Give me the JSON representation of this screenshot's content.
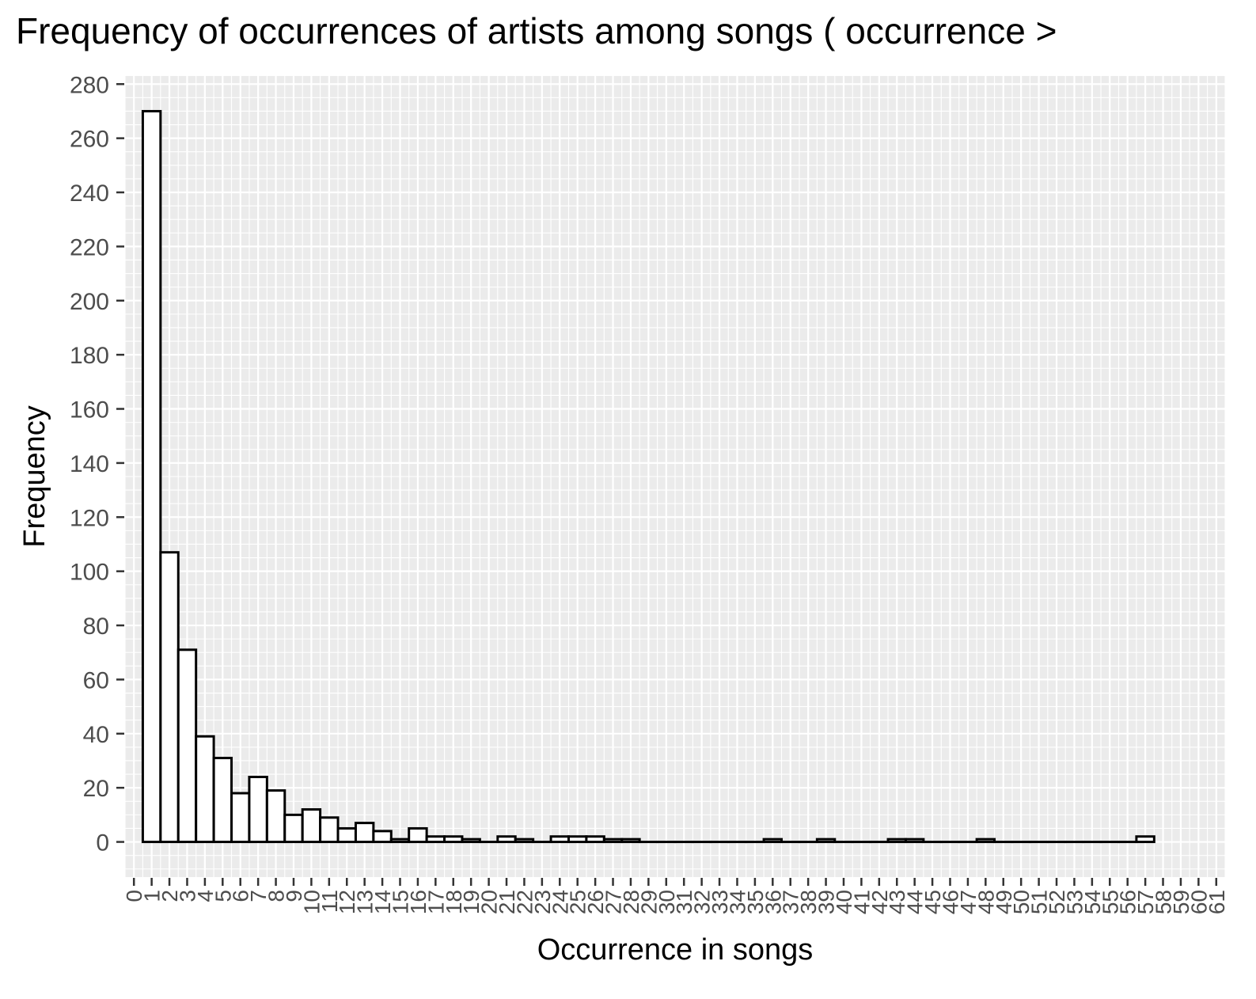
{
  "chart_data": {
    "type": "bar",
    "title": "Frequency of occurrences of artists among songs ( occurrence >",
    "xlabel": "Occurrence in songs",
    "ylabel": "Frequency",
    "x_ticks": [
      "0",
      "1",
      "2",
      "3",
      "4",
      "5",
      "6",
      "7",
      "8",
      "9",
      "10",
      "11",
      "12",
      "13",
      "14",
      "15",
      "16",
      "17",
      "18",
      "19",
      "20",
      "21",
      "22",
      "23",
      "24",
      "25",
      "26",
      "27",
      "28",
      "29",
      "30",
      "31",
      "32",
      "33",
      "34",
      "35",
      "36",
      "37",
      "38",
      "39",
      "40",
      "41",
      "42",
      "43",
      "44",
      "45",
      "46",
      "47",
      "48",
      "49",
      "50",
      "51",
      "52",
      "53",
      "54",
      "55",
      "56",
      "57",
      "58",
      "59",
      "60",
      "61"
    ],
    "y_ticks": [
      "0",
      "20",
      "40",
      "60",
      "80",
      "100",
      "120",
      "140",
      "160",
      "180",
      "200",
      "220",
      "240",
      "260",
      "280"
    ],
    "xlim": [
      -0.5,
      61.5
    ],
    "ylim": [
      -13,
      283
    ],
    "grid": true,
    "bar_fill": "#ffffff",
    "bar_stroke": "#000000",
    "panel_background": "#ebebeb",
    "gridline_color": "#ffffff",
    "bins": [
      {
        "x": 1,
        "value": 270
      },
      {
        "x": 2,
        "value": 107
      },
      {
        "x": 3,
        "value": 71
      },
      {
        "x": 4,
        "value": 39
      },
      {
        "x": 5,
        "value": 31
      },
      {
        "x": 6,
        "value": 18
      },
      {
        "x": 7,
        "value": 24
      },
      {
        "x": 8,
        "value": 19
      },
      {
        "x": 9,
        "value": 10
      },
      {
        "x": 10,
        "value": 12
      },
      {
        "x": 11,
        "value": 9
      },
      {
        "x": 12,
        "value": 5
      },
      {
        "x": 13,
        "value": 7
      },
      {
        "x": 14,
        "value": 4
      },
      {
        "x": 15,
        "value": 1
      },
      {
        "x": 16,
        "value": 5
      },
      {
        "x": 17,
        "value": 2
      },
      {
        "x": 18,
        "value": 2
      },
      {
        "x": 19,
        "value": 1
      },
      {
        "x": 20,
        "value": 0
      },
      {
        "x": 21,
        "value": 2
      },
      {
        "x": 22,
        "value": 1
      },
      {
        "x": 23,
        "value": 0
      },
      {
        "x": 24,
        "value": 2
      },
      {
        "x": 25,
        "value": 2
      },
      {
        "x": 26,
        "value": 2
      },
      {
        "x": 27,
        "value": 1
      },
      {
        "x": 28,
        "value": 1
      },
      {
        "x": 29,
        "value": 0
      },
      {
        "x": 30,
        "value": 0
      },
      {
        "x": 31,
        "value": 0
      },
      {
        "x": 32,
        "value": 0
      },
      {
        "x": 33,
        "value": 0
      },
      {
        "x": 34,
        "value": 0
      },
      {
        "x": 35,
        "value": 0
      },
      {
        "x": 36,
        "value": 1
      },
      {
        "x": 37,
        "value": 0
      },
      {
        "x": 38,
        "value": 0
      },
      {
        "x": 39,
        "value": 1
      },
      {
        "x": 40,
        "value": 0
      },
      {
        "x": 41,
        "value": 0
      },
      {
        "x": 42,
        "value": 0
      },
      {
        "x": 43,
        "value": 1
      },
      {
        "x": 44,
        "value": 1
      },
      {
        "x": 45,
        "value": 0
      },
      {
        "x": 46,
        "value": 0
      },
      {
        "x": 47,
        "value": 0
      },
      {
        "x": 48,
        "value": 1
      },
      {
        "x": 49,
        "value": 0
      },
      {
        "x": 50,
        "value": 0
      },
      {
        "x": 51,
        "value": 0
      },
      {
        "x": 52,
        "value": 0
      },
      {
        "x": 53,
        "value": 0
      },
      {
        "x": 54,
        "value": 0
      },
      {
        "x": 55,
        "value": 0
      },
      {
        "x": 56,
        "value": 0
      },
      {
        "x": 57,
        "value": 2
      }
    ]
  }
}
